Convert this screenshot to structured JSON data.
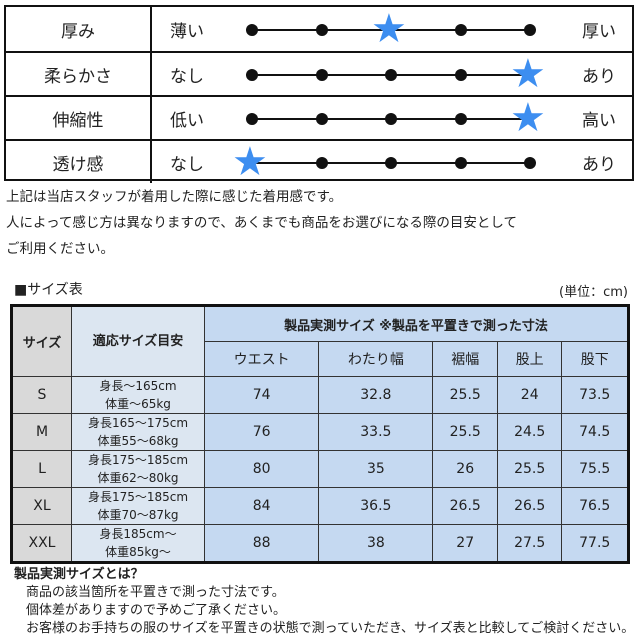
{
  "feel": [
    {
      "name": "厚み",
      "low": "薄い",
      "high": "厚い",
      "level": 2
    },
    {
      "name": "柔らかさ",
      "low": "なし",
      "high": "あり",
      "level": 4
    },
    {
      "name": "伸縮性",
      "low": "低い",
      "high": "高い",
      "level": 4
    },
    {
      "name": "透け感",
      "low": "なし",
      "high": "あり",
      "level": 0
    }
  ],
  "scale_positions": 5,
  "notes": [
    "上記は当店スタッフが着用した際に感じた着用感です。",
    "人によって感じ方は異なりますので、あくまでも商品をお選びになる際の目安として",
    "ご利用ください。"
  ],
  "size_table": {
    "title": "■サイズ表",
    "unit": "(単位：cm)",
    "col_size": "サイズ",
    "col_guide": "適応サイズ目安",
    "measured_header": "製品実測サイズ ※製品を平置きで測った寸法",
    "columns": [
      "ウエスト",
      "わたり幅",
      "裾幅",
      "股上",
      "股下"
    ],
    "rows": [
      {
        "size": "S",
        "height": "身長～165cm",
        "weight": "体重～65kg",
        "values": [
          "74",
          "32.8",
          "25.5",
          "24",
          "73.5"
        ]
      },
      {
        "size": "M",
        "height": "身長165～175cm",
        "weight": "体重55～68kg",
        "values": [
          "76",
          "33.5",
          "25.5",
          "24.5",
          "74.5"
        ]
      },
      {
        "size": "L",
        "height": "身長175～185cm",
        "weight": "体重62～80kg",
        "values": [
          "80",
          "35",
          "26",
          "25.5",
          "75.5"
        ]
      },
      {
        "size": "XL",
        "height": "身長175～185cm",
        "weight": "体重70～87kg",
        "values": [
          "84",
          "36.5",
          "26.5",
          "26.5",
          "76.5"
        ]
      },
      {
        "size": "XXL",
        "height": "身長185cm～",
        "weight": "体重85kg～",
        "values": [
          "88",
          "38",
          "27",
          "27.5",
          "77.5"
        ]
      }
    ]
  },
  "footer": {
    "title": "製品実測サイズとは？",
    "lines": [
      "商品の該当箇所を平置きで測った寸法です。",
      "個体差がありますので予めご了承ください。",
      "お客様のお手持ちの服のサイズを平置きの状態で測っていただき、サイズ表と比較してご検討ください。"
    ]
  }
}
